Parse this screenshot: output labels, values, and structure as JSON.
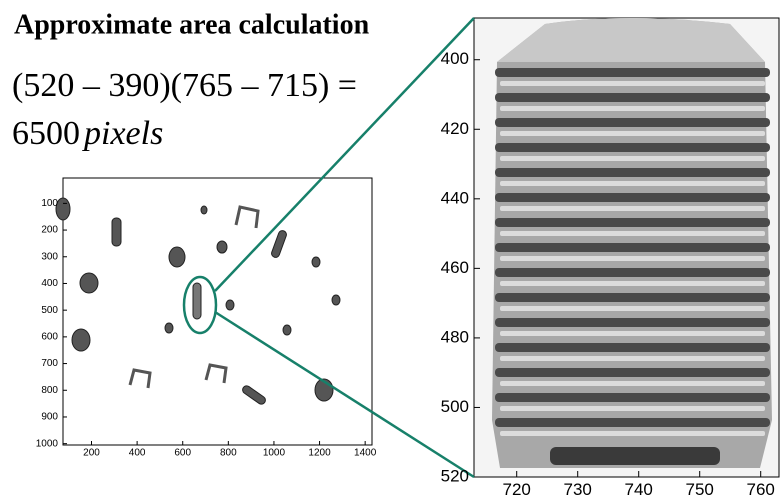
{
  "title": "Approximate area calculation",
  "formula": "(520 – 390)(765 – 715) =",
  "result": {
    "number": "6500",
    "unit": "pixels"
  },
  "plots": [
    {
      "xlim": [
        75,
        1430
      ],
      "ylim": [
        5,
        1005
      ],
      "xticks": [
        200,
        400,
        600,
        800,
        1000,
        1200,
        1400
      ],
      "yticks": [
        100,
        200,
        300,
        400,
        500,
        600,
        700,
        800,
        900,
        1000
      ]
    },
    {
      "xlim": [
        713,
        763
      ],
      "ylim": [
        388,
        520
      ],
      "xticks": [
        720,
        730,
        740,
        750,
        760
      ],
      "yticks": [
        400,
        420,
        440,
        460,
        480,
        500,
        520
      ]
    }
  ]
}
